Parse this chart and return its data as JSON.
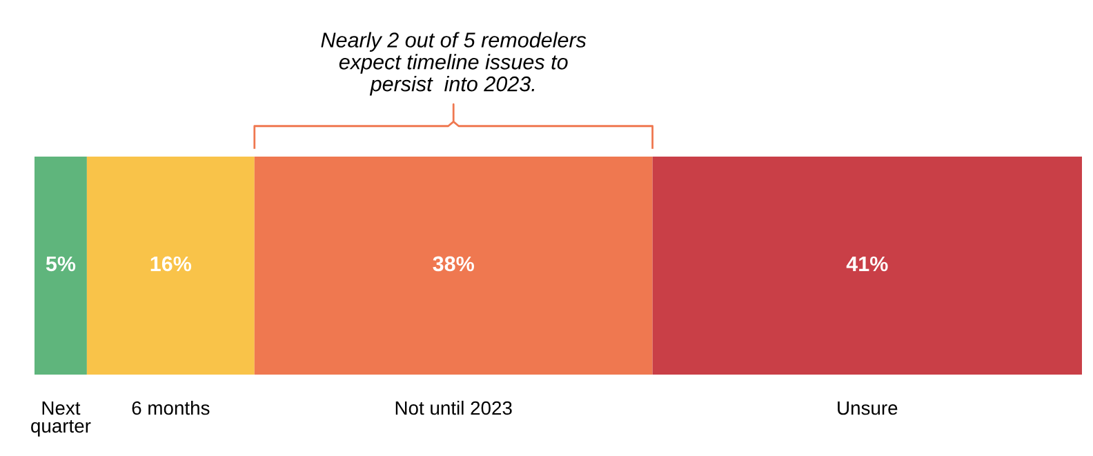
{
  "chart_data": {
    "type": "bar",
    "orientation": "horizontal",
    "stacked": true,
    "categories": [
      null
    ],
    "series": [
      {
        "name": "Next quarter",
        "color": "#5fb57c",
        "values": [
          5
        ],
        "value_labels": [
          "5%"
        ]
      },
      {
        "name": "6 months",
        "color": "#f9c349",
        "values": [
          16
        ],
        "value_labels": [
          "16%"
        ]
      },
      {
        "name": "Not until 2023",
        "color": "#ef7850",
        "values": [
          38
        ],
        "value_labels": [
          "38%"
        ]
      },
      {
        "name": "Unsure",
        "color": "#c93f47",
        "values": [
          41
        ],
        "value_labels": [
          "41%"
        ]
      }
    ],
    "annotations": [
      "Nearly 2 out of 5 remodelers\nexpect timeline issues to\npersist  into 2023."
    ]
  }
}
